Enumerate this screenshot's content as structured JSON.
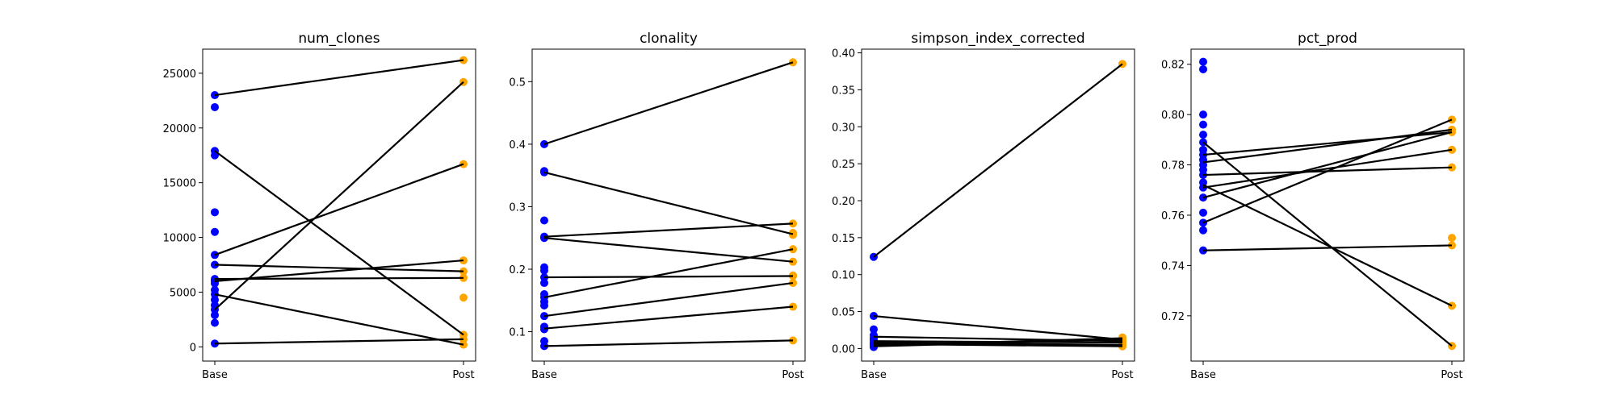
{
  "chart_data": [
    {
      "type": "scatter",
      "title": "num_clones",
      "categories": [
        "Base",
        "Post"
      ],
      "ylim": [
        -1300,
        27200
      ],
      "yticks": [
        0,
        5000,
        10000,
        15000,
        20000,
        25000
      ],
      "ytick_labels": [
        "0",
        "5000",
        "10000",
        "15000",
        "20000",
        "25000"
      ],
      "series": [
        {
          "color": "#0000ff",
          "x": "Base",
          "values": [
            23000,
            21900,
            17900,
            17500,
            12300,
            10500,
            8400,
            7500,
            6200,
            6000,
            5800,
            5200,
            4800,
            4300,
            3800,
            3400,
            2900,
            2200,
            300
          ]
        },
        {
          "color": "#ffa500",
          "x": "Post",
          "values": [
            26200,
            24200,
            16700,
            7900,
            6900,
            6300,
            4500,
            1100,
            700,
            200
          ]
        }
      ],
      "pairs": [
        [
          23000,
          26200
        ],
        [
          3400,
          24200
        ],
        [
          8400,
          16700
        ],
        [
          6000,
          7900
        ],
        [
          7500,
          6900
        ],
        [
          6200,
          6300
        ],
        [
          17900,
          1100
        ],
        [
          300,
          700
        ],
        [
          4800,
          200
        ]
      ]
    },
    {
      "type": "scatter",
      "title": "clonality",
      "categories": [
        "Base",
        "Post"
      ],
      "ylim": [
        0.053,
        0.552
      ],
      "yticks": [
        0.1,
        0.2,
        0.3,
        0.4,
        0.5
      ],
      "ytick_labels": [
        "0.1",
        "0.2",
        "0.3",
        "0.4",
        "0.5"
      ],
      "series": [
        {
          "color": "#0000ff",
          "x": "Base",
          "values": [
            0.4,
            0.357,
            0.355,
            0.278,
            0.252,
            0.25,
            0.203,
            0.198,
            0.187,
            0.178,
            0.16,
            0.155,
            0.148,
            0.142,
            0.125,
            0.108,
            0.104,
            0.085,
            0.077
          ]
        },
        {
          "color": "#ffa500",
          "x": "Post",
          "values": [
            0.531,
            0.273,
            0.258,
            0.255,
            0.232,
            0.212,
            0.19,
            0.189,
            0.178,
            0.14,
            0.086
          ]
        }
      ],
      "pairs": [
        [
          0.4,
          0.531
        ],
        [
          0.252,
          0.273
        ],
        [
          0.355,
          0.256
        ],
        [
          0.155,
          0.232
        ],
        [
          0.25,
          0.212
        ],
        [
          0.187,
          0.189
        ],
        [
          0.125,
          0.178
        ],
        [
          0.105,
          0.14
        ],
        [
          0.077,
          0.086
        ]
      ]
    },
    {
      "type": "scatter",
      "title": "simpson_index_corrected",
      "categories": [
        "Base",
        "Post"
      ],
      "ylim": [
        -0.017,
        0.405
      ],
      "yticks": [
        0.0,
        0.05,
        0.1,
        0.15,
        0.2,
        0.25,
        0.3,
        0.35,
        0.4
      ],
      "ytick_labels": [
        "0.00",
        "0.05",
        "0.10",
        "0.15",
        "0.20",
        "0.25",
        "0.30",
        "0.35",
        "0.40"
      ],
      "series": [
        {
          "color": "#0000ff",
          "x": "Base",
          "values": [
            0.124,
            0.044,
            0.026,
            0.018,
            0.014,
            0.011,
            0.008,
            0.006,
            0.004,
            0.002
          ]
        },
        {
          "color": "#ffa500",
          "x": "Post",
          "values": [
            0.385,
            0.015,
            0.012,
            0.01,
            0.008,
            0.005,
            0.003
          ]
        }
      ],
      "pairs": [
        [
          0.124,
          0.385
        ],
        [
          0.044,
          0.012
        ],
        [
          0.016,
          0.01
        ],
        [
          0.01,
          0.008
        ],
        [
          0.008,
          0.005
        ],
        [
          0.006,
          0.003
        ],
        [
          0.004,
          0.014
        ],
        [
          0.003,
          0.012
        ]
      ]
    },
    {
      "type": "scatter",
      "title": "pct_prod",
      "categories": [
        "Base",
        "Post"
      ],
      "ylim": [
        0.702,
        0.826
      ],
      "yticks": [
        0.72,
        0.74,
        0.76,
        0.78,
        0.8,
        0.82
      ],
      "ytick_labels": [
        "0.72",
        "0.74",
        "0.76",
        "0.78",
        "0.80",
        "0.82"
      ],
      "series": [
        {
          "color": "#0000ff",
          "x": "Base",
          "values": [
            0.821,
            0.818,
            0.8,
            0.796,
            0.792,
            0.789,
            0.786,
            0.784,
            0.782,
            0.78,
            0.778,
            0.776,
            0.773,
            0.771,
            0.767,
            0.761,
            0.757,
            0.754,
            0.746
          ]
        },
        {
          "color": "#ffa500",
          "x": "Post",
          "values": [
            0.798,
            0.794,
            0.793,
            0.786,
            0.779,
            0.751,
            0.748,
            0.724,
            0.708
          ]
        }
      ],
      "pairs": [
        [
          0.757,
          0.798
        ],
        [
          0.784,
          0.793
        ],
        [
          0.781,
          0.794
        ],
        [
          0.771,
          0.786
        ],
        [
          0.776,
          0.779
        ],
        [
          0.746,
          0.748
        ],
        [
          0.789,
          0.708
        ],
        [
          0.772,
          0.724
        ],
        [
          0.767,
          0.793
        ]
      ]
    }
  ]
}
